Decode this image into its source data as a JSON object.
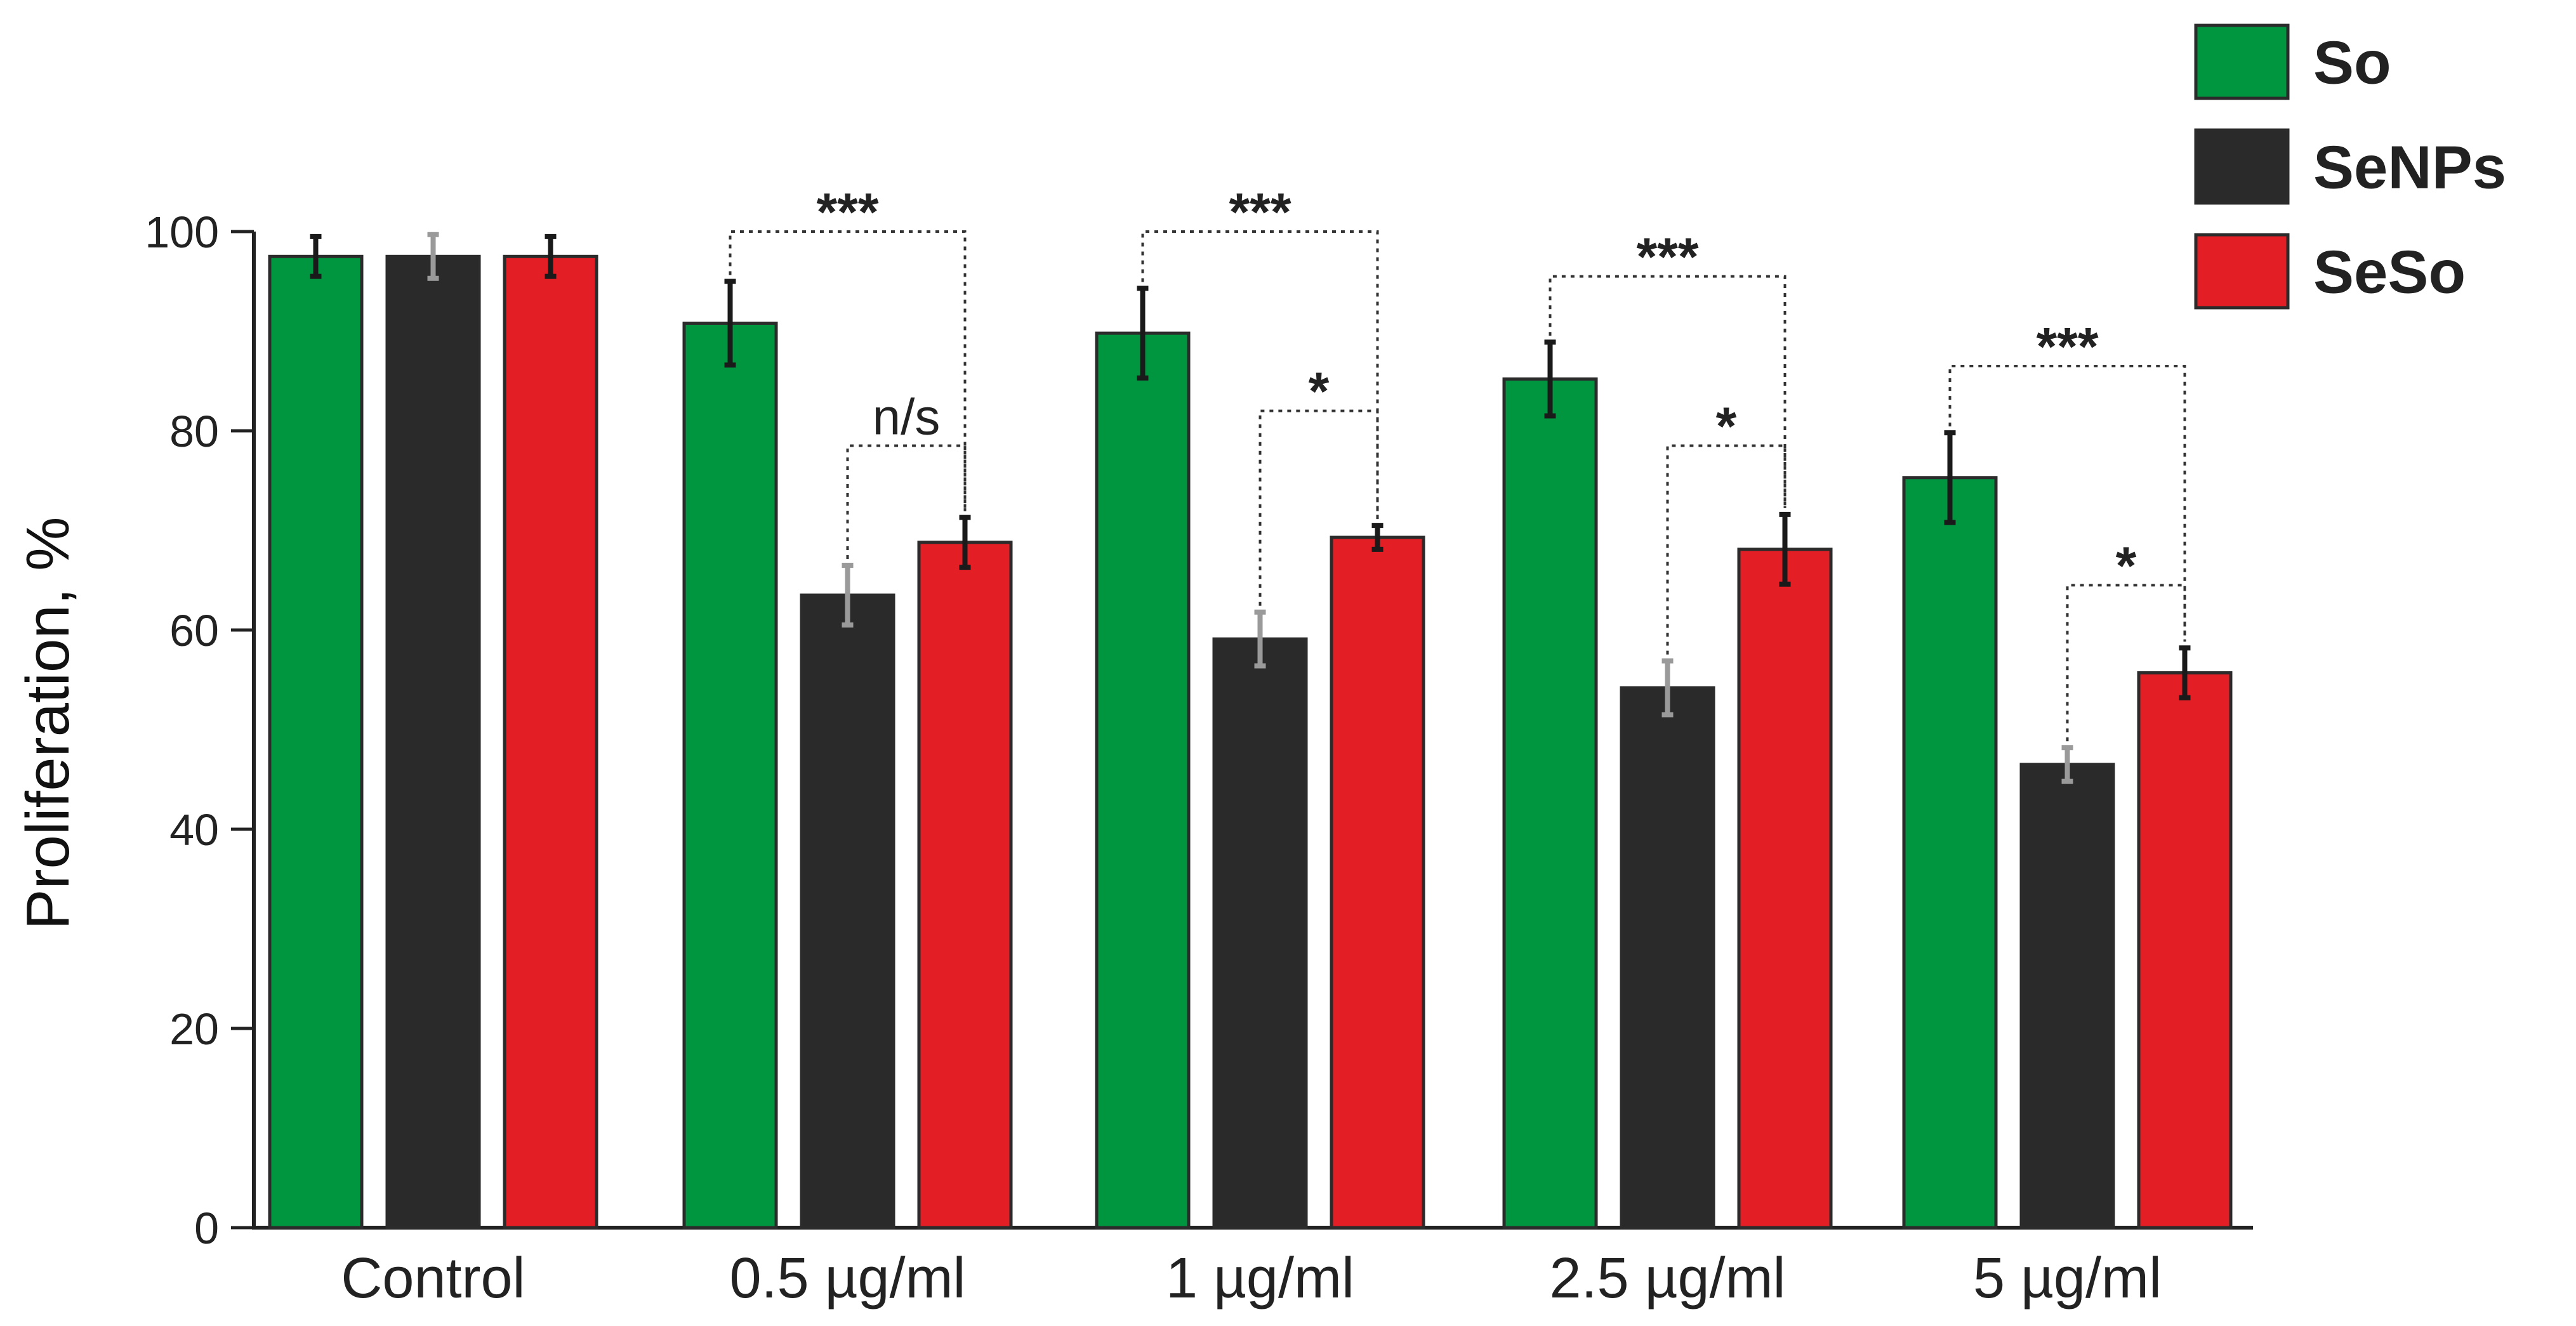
{
  "chart_data": {
    "type": "bar",
    "title": "",
    "xlabel": "",
    "ylabel": "Proliferation, %",
    "ylim": [
      0,
      100
    ],
    "yticks": [
      "0",
      "20",
      "40",
      "60",
      "80",
      "100"
    ],
    "categories": [
      "Control",
      "0.5 µg/ml",
      "1 µg/ml",
      "2.5 µg/ml",
      "5 µg/ml"
    ],
    "series": [
      {
        "name": "So",
        "color": "#009640",
        "values": [
          97.5,
          90.8,
          89.8,
          85.2,
          75.3
        ],
        "errors": [
          2.0,
          4.2,
          4.5,
          3.7,
          4.5
        ]
      },
      {
        "name": "SeNPs",
        "color": "#2a2a2a",
        "values": [
          97.5,
          63.5,
          59.1,
          54.2,
          46.5
        ],
        "errors": [
          2.2,
          3.0,
          2.7,
          2.7,
          1.7
        ]
      },
      {
        "name": "SeSo",
        "color": "#e31e24",
        "values": [
          97.5,
          68.8,
          69.3,
          68.1,
          55.7
        ],
        "errors": [
          2.0,
          2.5,
          1.2,
          3.5,
          2.5
        ]
      }
    ],
    "legend": {
      "position": "top-right",
      "entries": [
        "So",
        "SeNPs",
        "SeSo"
      ]
    },
    "significance": [
      {
        "group": 1,
        "from": 0,
        "to": 2,
        "level": 100,
        "label": "***"
      },
      {
        "group": 1,
        "from": 1,
        "to": 2,
        "level": 78.5,
        "label": "n/s"
      },
      {
        "group": 2,
        "from": 0,
        "to": 2,
        "level": 100,
        "label": "***"
      },
      {
        "group": 2,
        "from": 1,
        "to": 2,
        "level": 82,
        "label": "*"
      },
      {
        "group": 3,
        "from": 0,
        "to": 2,
        "level": 95.5,
        "label": "***"
      },
      {
        "group": 3,
        "from": 1,
        "to": 2,
        "level": 78.5,
        "label": "*"
      },
      {
        "group": 4,
        "from": 0,
        "to": 2,
        "level": 86.5,
        "label": "***"
      },
      {
        "group": 4,
        "from": 1,
        "to": 2,
        "level": 64.5,
        "label": "*"
      }
    ]
  }
}
